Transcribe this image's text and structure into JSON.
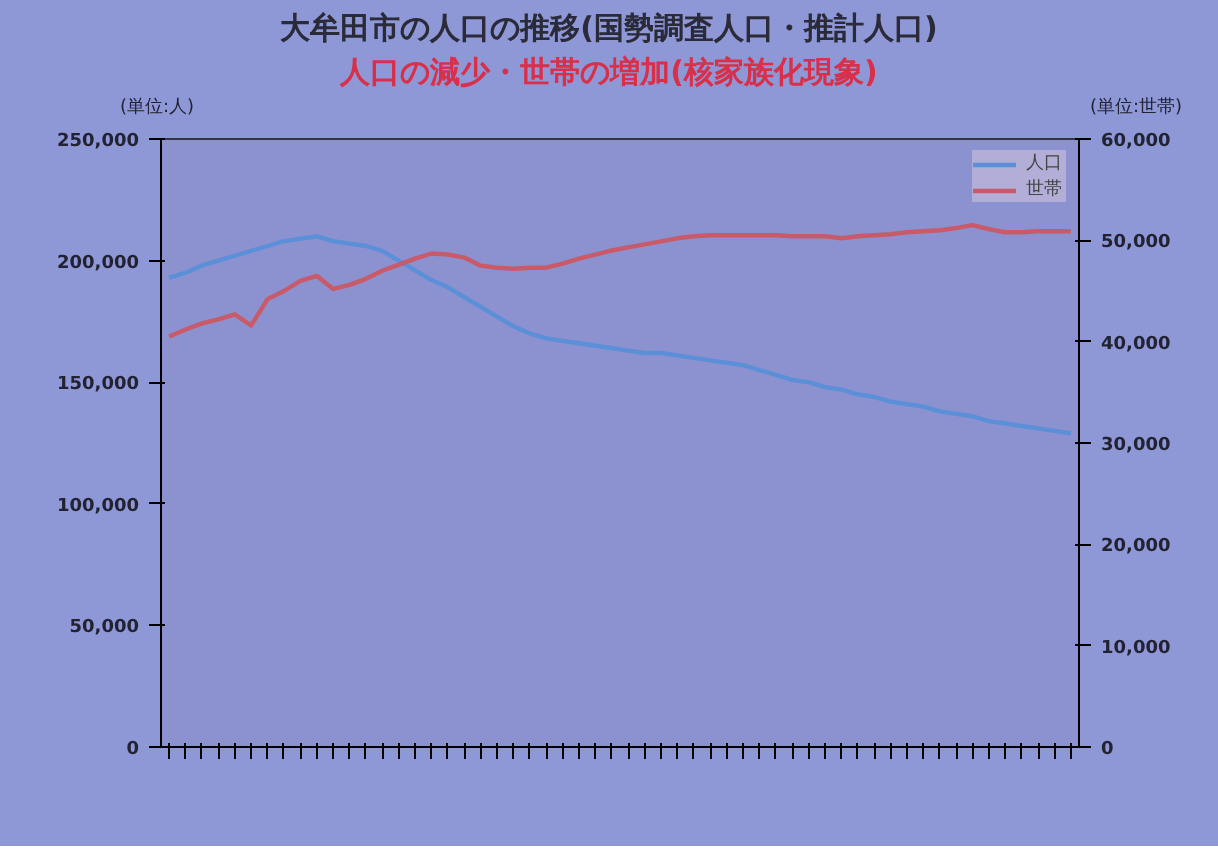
{
  "chart_data": {
    "type": "line",
    "title": "大牟田市の人口の推移(国勢調査人口・推計人口)",
    "subtitle": "人口の減少・世帯の増加(核家族化現象)",
    "ylabel": "(単位:人)",
    "y2label": "(単位:世帯)",
    "categories": [
      null,
      null,
      null,
      null,
      null,
      null,
      null,
      null,
      null,
      null,
      null,
      null,
      null,
      null,
      null,
      null,
      null,
      null,
      null,
      null,
      null,
      null,
      null,
      null,
      null,
      null,
      null,
      null,
      null,
      null,
      null,
      null,
      null,
      null,
      null,
      null,
      null,
      null,
      null,
      null,
      null,
      null,
      null,
      null,
      null,
      null,
      null,
      null,
      null,
      null,
      null,
      null,
      null,
      null,
      null,
      null
    ],
    "series": [
      {
        "name": "人口",
        "color": "#5b8fd8",
        "values": [
          193000,
          195000,
          198000,
          200000,
          202000,
          204000,
          206000,
          208000,
          209000,
          210000,
          208000,
          207000,
          206000,
          204000,
          200000,
          196000,
          192000,
          189000,
          185000,
          181000,
          177000,
          173000,
          170000,
          168000,
          167000,
          166000,
          165000,
          164000,
          163000,
          162000,
          162000,
          161000,
          160000,
          159000,
          158000,
          157000,
          155000,
          153000,
          151000,
          150000,
          148000,
          147000,
          145000,
          144000,
          142000,
          141000,
          140000,
          138000,
          137000,
          136000,
          134000,
          133000,
          132000,
          131000,
          130000,
          129000
        ]
      },
      {
        "name": "世帯",
        "color": "#c85a6a",
        "axis": "y2",
        "values": [
          40500,
          41200,
          41800,
          42200,
          42700,
          41600,
          44200,
          45000,
          46000,
          46500,
          45200,
          45600,
          46200,
          47000,
          47600,
          48200,
          48700,
          48600,
          48300,
          47500,
          47300,
          47200,
          47300,
          47300,
          47700,
          48200,
          48600,
          49000,
          49300,
          49600,
          49900,
          50200,
          50400,
          50500,
          50500,
          50500,
          50500,
          50500,
          50400,
          50400,
          50400,
          50200,
          50400,
          50500,
          50600,
          50800,
          50900,
          51000,
          51200,
          51500,
          51100,
          50800,
          50800,
          50900,
          50900,
          50900
        ]
      }
    ],
    "ylim": [
      0,
      250000
    ],
    "yticks": [
      0,
      {
        "value": 50000,
        "label": "50,000"
      },
      {
        "value": 100000,
        "label": "100,000"
      },
      {
        "value": 150000,
        "label": "150,000"
      },
      {
        "value": 200000,
        "label": "200,000"
      },
      {
        "value": 250000,
        "label": "250,000"
      }
    ],
    "y2lim": [
      0,
      60000
    ],
    "y2ticks": [
      0,
      {
        "value": 10000,
        "label": "10,000"
      },
      {
        "value": 20000,
        "label": "20,000"
      },
      {
        "value": 30000,
        "label": "30,000"
      },
      {
        "value": 40000,
        "label": "40,000"
      },
      {
        "value": 50000,
        "label": "50,000"
      },
      {
        "value": 60000,
        "label": "60,000"
      }
    ],
    "legend": "top right",
    "grid": false,
    "tick_labels": "y",
    "marker": "none",
    "line_style": "solid"
  }
}
